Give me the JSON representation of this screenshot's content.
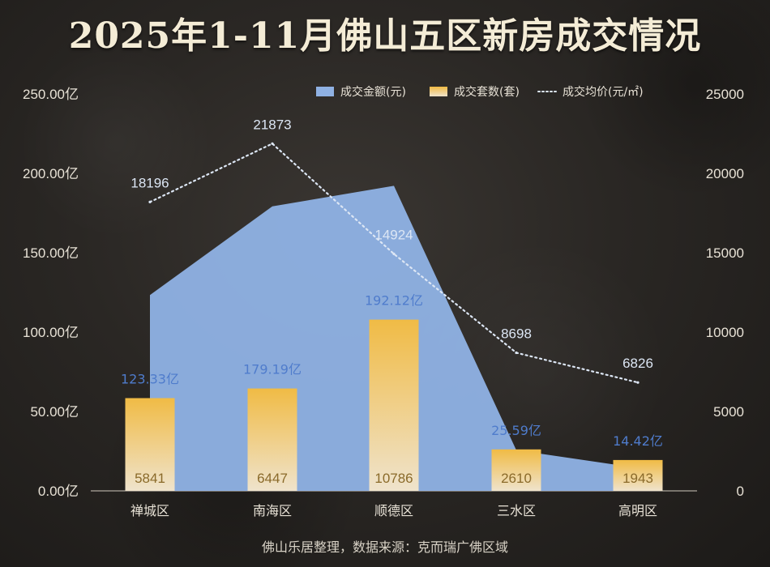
{
  "title": "2025年1-11月佛山五区新房成交情况",
  "source": "佛山乐居整理，数据来源：克而瑞广佛区域",
  "colors": {
    "area": "#8fb1e3",
    "bar_top": "#f0bb45",
    "bar_bottom": "#efe3cc",
    "line": "#dce6f4",
    "amount_label": "#4f7ccc"
  },
  "chart_data": {
    "type": "bar",
    "categories": [
      "禅城区",
      "南海区",
      "顺德区",
      "三水区",
      "高明区"
    ],
    "series": [
      {
        "name": "成交金额(元)",
        "type": "area",
        "axis": "left",
        "values": [
          123.33,
          179.19,
          192.12,
          25.59,
          14.42
        ],
        "labels": [
          "123.33亿",
          "179.19亿",
          "192.12亿",
          "25.59亿",
          "14.42亿"
        ]
      },
      {
        "name": "成交套数(套)",
        "type": "bar",
        "axis": "right",
        "values": [
          5841,
          6447,
          10786,
          2610,
          1943
        ],
        "labels": [
          "5841",
          "6447",
          "10786",
          "2610",
          "1943"
        ]
      },
      {
        "name": "成交均价(元/㎡)",
        "type": "line",
        "style": "dotted",
        "axis": "right",
        "values": [
          18196,
          21873,
          14924,
          8698,
          6826
        ],
        "labels": [
          "18196",
          "21873",
          "14924",
          "8698",
          "6826"
        ]
      }
    ],
    "y_left": {
      "ylim": [
        0,
        250
      ],
      "ticks": [
        "0.00亿",
        "50.00亿",
        "100.00亿",
        "150.00亿",
        "200.00亿",
        "250.00亿"
      ],
      "tick_values": [
        0,
        50,
        100,
        150,
        200,
        250
      ]
    },
    "y_right": {
      "ylim": [
        0,
        25000
      ],
      "ticks": [
        "0",
        "5000",
        "10000",
        "15000",
        "20000",
        "25000"
      ],
      "tick_values": [
        0,
        5000,
        10000,
        15000,
        20000,
        25000
      ]
    },
    "legend_position": "top-right",
    "grid": false
  }
}
